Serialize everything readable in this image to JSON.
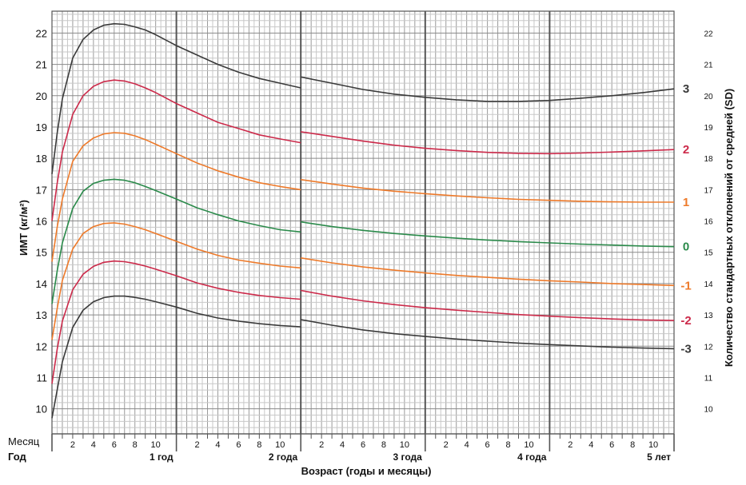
{
  "chart_data": {
    "type": "line",
    "title": "",
    "xlabel": "Возраст (годы и месяцы)",
    "ylabel_left": "ИМТ (кг/м²)",
    "ylabel_right": "Количество стандартных отклонений от средней (SD)",
    "x_unit": "months",
    "xlim": [
      0,
      60
    ],
    "ylim": [
      9.2,
      22.7
    ],
    "y_ticks": [
      10,
      11,
      12,
      13,
      14,
      15,
      16,
      17,
      18,
      19,
      20,
      21,
      22
    ],
    "grid": true,
    "row_label_month": "Месяц",
    "row_label_year": "Год",
    "month_tick_labels": [
      "2",
      "4",
      "6",
      "8",
      "10"
    ],
    "year_tick_labels": [
      {
        "month": 12,
        "label": "1 год"
      },
      {
        "month": 24,
        "label": "2 года"
      },
      {
        "month": 36,
        "label": "3 года"
      },
      {
        "month": 48,
        "label": "4 года"
      },
      {
        "month": 60,
        "label": "5 лет"
      }
    ],
    "segment_break_month": 24,
    "series": [
      {
        "name": "3",
        "color": "#3a3a3a",
        "seg1": {
          "x": [
            0,
            0.5,
            1,
            2,
            3,
            4,
            5,
            6,
            7,
            8,
            9,
            10,
            12,
            14,
            16,
            18,
            20,
            22,
            24
          ],
          "y": [
            17.5,
            18.8,
            19.9,
            21.2,
            21.8,
            22.1,
            22.25,
            22.3,
            22.28,
            22.2,
            22.1,
            21.95,
            21.6,
            21.3,
            21.0,
            20.75,
            20.55,
            20.4,
            20.25
          ]
        },
        "seg2": {
          "x": [
            24,
            27,
            30,
            33,
            36,
            39,
            42,
            45,
            48,
            51,
            54,
            57,
            60
          ],
          "y": [
            20.6,
            20.4,
            20.2,
            20.05,
            19.95,
            19.87,
            19.82,
            19.82,
            19.85,
            19.92,
            20.0,
            20.1,
            20.22
          ]
        }
      },
      {
        "name": "2",
        "color": "#cc2a4a",
        "seg1": {
          "x": [
            0,
            0.5,
            1,
            2,
            3,
            4,
            5,
            6,
            7,
            8,
            9,
            10,
            12,
            14,
            16,
            18,
            20,
            22,
            24
          ],
          "y": [
            16.0,
            17.2,
            18.2,
            19.4,
            20.0,
            20.3,
            20.45,
            20.5,
            20.47,
            20.38,
            20.25,
            20.1,
            19.75,
            19.45,
            19.15,
            18.95,
            18.75,
            18.62,
            18.5
          ]
        },
        "seg2": {
          "x": [
            24,
            27,
            30,
            33,
            36,
            39,
            42,
            45,
            48,
            51,
            54,
            57,
            60
          ],
          "y": [
            18.85,
            18.7,
            18.55,
            18.42,
            18.32,
            18.25,
            18.19,
            18.16,
            18.15,
            18.17,
            18.2,
            18.24,
            18.28
          ]
        }
      },
      {
        "name": "1",
        "color": "#ee7a2a",
        "seg1": {
          "x": [
            0,
            0.5,
            1,
            2,
            3,
            4,
            5,
            6,
            7,
            8,
            9,
            10,
            12,
            14,
            16,
            18,
            20,
            22,
            24
          ],
          "y": [
            14.7,
            15.8,
            16.7,
            17.9,
            18.4,
            18.65,
            18.78,
            18.82,
            18.8,
            18.72,
            18.6,
            18.45,
            18.15,
            17.85,
            17.6,
            17.4,
            17.22,
            17.1,
            17.0
          ]
        },
        "seg2": {
          "x": [
            24,
            27,
            30,
            33,
            36,
            39,
            42,
            45,
            48,
            51,
            54,
            57,
            60
          ],
          "y": [
            17.32,
            17.18,
            17.05,
            16.95,
            16.87,
            16.8,
            16.74,
            16.69,
            16.66,
            16.63,
            16.61,
            16.6,
            16.6
          ]
        }
      },
      {
        "name": "0",
        "color": "#2a8a4a",
        "seg1": {
          "x": [
            0,
            0.5,
            1,
            2,
            3,
            4,
            5,
            6,
            7,
            8,
            9,
            10,
            12,
            14,
            16,
            18,
            20,
            22,
            24
          ],
          "y": [
            13.35,
            14.4,
            15.3,
            16.4,
            16.95,
            17.2,
            17.3,
            17.33,
            17.3,
            17.22,
            17.1,
            16.97,
            16.7,
            16.42,
            16.2,
            16.0,
            15.85,
            15.72,
            15.65
          ]
        },
        "seg2": {
          "x": [
            24,
            27,
            30,
            33,
            36,
            39,
            42,
            45,
            48,
            51,
            54,
            57,
            60
          ],
          "y": [
            15.97,
            15.82,
            15.7,
            15.6,
            15.52,
            15.45,
            15.39,
            15.34,
            15.3,
            15.26,
            15.23,
            15.2,
            15.18
          ]
        }
      },
      {
        "name": "-1",
        "color": "#ee7a2a",
        "seg1": {
          "x": [
            0,
            0.5,
            1,
            2,
            3,
            4,
            5,
            6,
            7,
            8,
            9,
            10,
            12,
            14,
            16,
            18,
            20,
            22,
            24
          ],
          "y": [
            12.2,
            13.2,
            14.1,
            15.1,
            15.6,
            15.82,
            15.92,
            15.94,
            15.9,
            15.82,
            15.72,
            15.6,
            15.35,
            15.1,
            14.9,
            14.75,
            14.65,
            14.56,
            14.5
          ]
        },
        "seg2": {
          "x": [
            24,
            27,
            30,
            33,
            36,
            39,
            42,
            45,
            48,
            51,
            54,
            57,
            60
          ],
          "y": [
            14.82,
            14.66,
            14.53,
            14.43,
            14.34,
            14.26,
            14.2,
            14.14,
            14.09,
            14.05,
            14.0,
            13.97,
            13.94
          ]
        }
      },
      {
        "name": "-2",
        "color": "#cc2a4a",
        "seg1": {
          "x": [
            0,
            0.5,
            1,
            2,
            3,
            4,
            5,
            6,
            7,
            8,
            9,
            10,
            12,
            14,
            16,
            18,
            20,
            22,
            24
          ],
          "y": [
            10.8,
            11.9,
            12.8,
            13.8,
            14.3,
            14.55,
            14.68,
            14.72,
            14.7,
            14.64,
            14.56,
            14.46,
            14.25,
            14.02,
            13.85,
            13.72,
            13.62,
            13.55,
            13.5
          ]
        },
        "seg2": {
          "x": [
            24,
            27,
            30,
            33,
            36,
            39,
            42,
            45,
            48,
            51,
            54,
            57,
            60
          ],
          "y": [
            13.78,
            13.6,
            13.45,
            13.33,
            13.23,
            13.15,
            13.08,
            13.01,
            12.96,
            12.91,
            12.87,
            12.84,
            12.82
          ]
        }
      },
      {
        "name": "-3",
        "color": "#3a3a3a",
        "seg1": {
          "x": [
            0,
            0.5,
            1,
            2,
            3,
            4,
            5,
            6,
            7,
            8,
            9,
            10,
            12,
            14,
            16,
            18,
            20,
            22,
            24
          ],
          "y": [
            9.7,
            10.6,
            11.5,
            12.6,
            13.15,
            13.42,
            13.55,
            13.6,
            13.6,
            13.56,
            13.5,
            13.42,
            13.25,
            13.05,
            12.9,
            12.8,
            12.72,
            12.66,
            12.62
          ]
        },
        "seg2": {
          "x": [
            24,
            27,
            30,
            33,
            36,
            39,
            42,
            45,
            48,
            51,
            54,
            57,
            60
          ],
          "y": [
            12.85,
            12.67,
            12.52,
            12.4,
            12.31,
            12.23,
            12.16,
            12.1,
            12.05,
            12.01,
            11.97,
            11.94,
            11.92
          ]
        }
      }
    ]
  }
}
